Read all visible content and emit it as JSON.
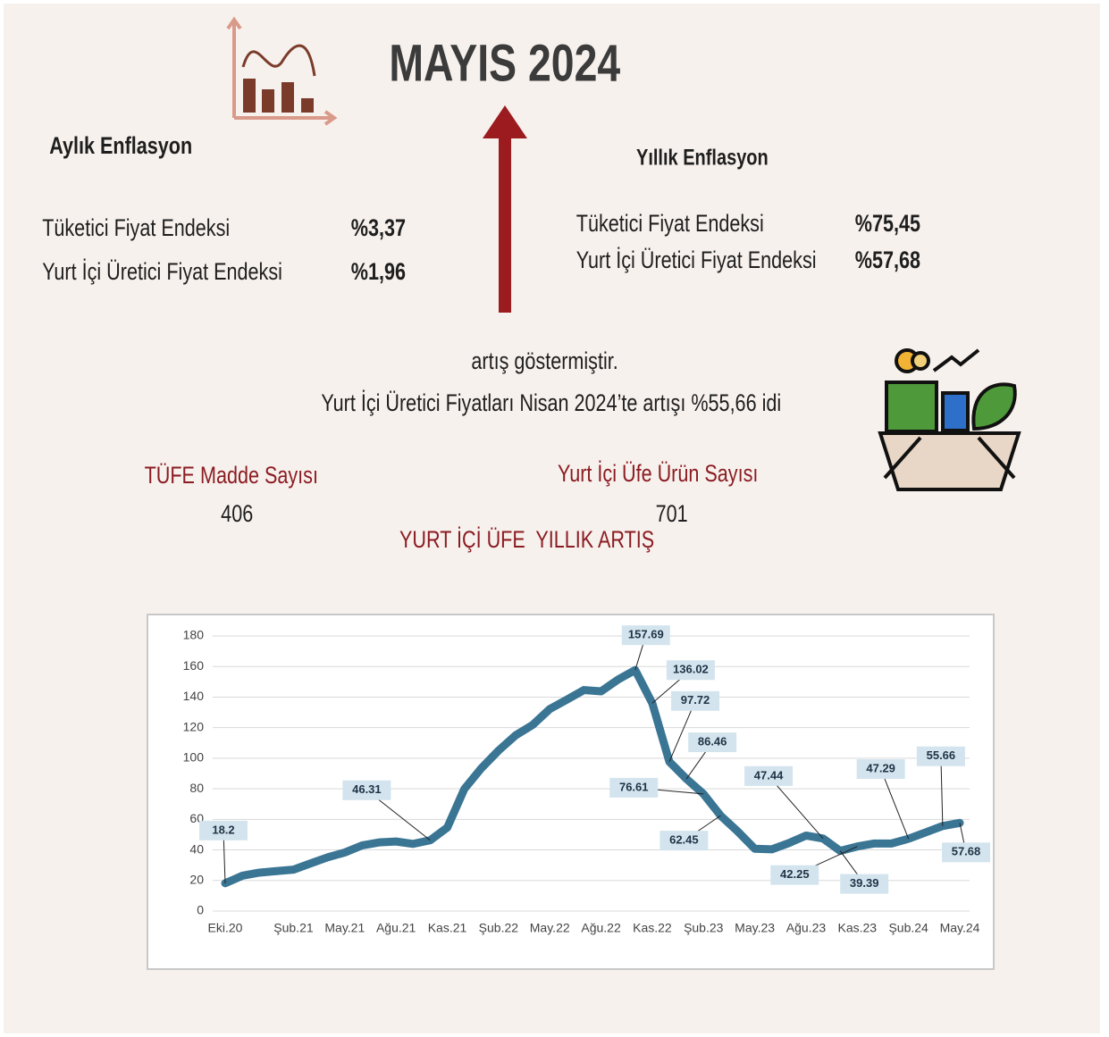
{
  "header": {
    "title": "MAYIS 2024"
  },
  "monthly": {
    "title": "Aylık Enflasyon",
    "rows": [
      {
        "label": "Tüketici Fiyat Endeksi",
        "value": "%3,37"
      },
      {
        "label": "Yurt İçi Üretici Fiyat Endeksi",
        "value": "%1,96"
      }
    ]
  },
  "annual": {
    "title": "Yıllık Enflasyon",
    "rows": [
      {
        "label": "Tüketici Fiyat Endeksi",
        "value": "%75,45"
      },
      {
        "label": "Yurt İçi Üretici Fiyat Endeksi",
        "value": "%57,68"
      }
    ]
  },
  "notes": [
    "artış göstermiştir.",
    "Yurt İçi Üretici Fiyatları Nisan 2024’te artışı %55,66 idi"
  ],
  "counts": [
    {
      "label": "TÜFE Madde Sayısı",
      "value": 406
    },
    {
      "label": "Yurt İçi Üfe Ürün Sayısı",
      "value": 701
    }
  ],
  "chart_data": {
    "type": "line",
    "title": "YURT İÇİ ÜFE  YILLIK ARTIŞ",
    "categories": [
      "Eki.20",
      null,
      null,
      null,
      "Şub.21",
      null,
      null,
      "May.21",
      null,
      null,
      "Ağu.21",
      null,
      null,
      "Kas.21",
      null,
      null,
      "Şub.22",
      null,
      null,
      "May.22",
      null,
      null,
      "Ağu.22",
      null,
      null,
      "Kas.22",
      null,
      null,
      "Şub.23",
      null,
      null,
      "May.23",
      null,
      null,
      "Ağu.23",
      null,
      null,
      "Kas.23",
      null,
      null,
      "Şub.24",
      null,
      null,
      "May.24"
    ],
    "series": [
      {
        "name": "Yurt İçi ÜFE",
        "color": "#3a7594",
        "values": [
          18.2,
          23.11,
          25.15,
          26.16,
          27.09,
          31.2,
          35.17,
          38.33,
          42.89,
          44.92,
          45.52,
          43.96,
          46.31,
          54.62,
          79.89,
          93.53,
          105.01,
          114.97,
          121.82,
          132.16,
          138.31,
          144.61,
          143.75,
          151.5,
          157.69,
          136.02,
          97.72,
          86.46,
          76.61,
          62.45,
          52.11,
          40.76,
          40.42,
          44.5,
          49.41,
          47.44,
          39.39,
          42.25,
          44.22,
          44.2,
          47.29,
          51.47,
          55.66,
          57.68
        ],
        "value_labels": [
          "18.2",
          null,
          null,
          null,
          null,
          null,
          null,
          null,
          null,
          null,
          null,
          null,
          "46.31",
          null,
          null,
          null,
          null,
          null,
          null,
          null,
          null,
          null,
          null,
          null,
          "157.69",
          "136.02",
          "97.72",
          "86.46",
          "76.61",
          "62.45",
          null,
          null,
          null,
          null,
          null,
          "47.44",
          "39.39",
          "42.25",
          null,
          null,
          "47.29",
          null,
          "55.66",
          "57.68"
        ]
      }
    ],
    "ylim": [
      0,
      180
    ],
    "yticks": [
      0,
      20,
      40,
      60,
      80,
      100,
      120,
      140,
      160,
      180
    ],
    "grid": true
  }
}
